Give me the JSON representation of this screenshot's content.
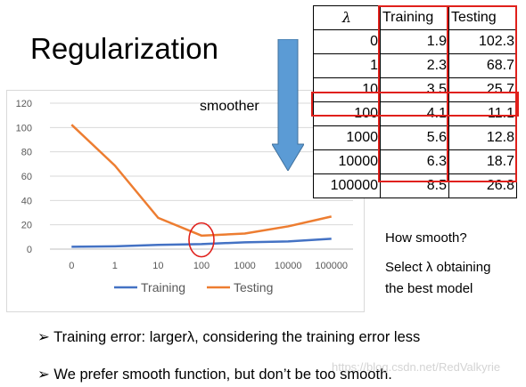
{
  "slide_title": "Regularization",
  "annotation_arrow_label": "smoother",
  "table": {
    "headers": [
      "λ",
      "Training",
      "Testing"
    ],
    "rows": [
      [
        "0",
        "1.9",
        "102.3"
      ],
      [
        "1",
        "2.3",
        "68.7"
      ],
      [
        "10",
        "3.5",
        "25.7"
      ],
      [
        "100",
        "4.1",
        "11.1"
      ],
      [
        "1000",
        "5.6",
        "12.8"
      ],
      [
        "10000",
        "6.3",
        "18.7"
      ],
      [
        "100000",
        "8.5",
        "26.8"
      ]
    ],
    "highlighted_row_lambda": "100"
  },
  "side_notes": {
    "question": "How smooth?",
    "answer_line1": "Select λ obtaining",
    "answer_line2": "the best model"
  },
  "bullets": [
    "Training error: largerλ, considering the training error less",
    "We prefer smooth function, but don’t be too smooth."
  ],
  "watermark": "https://blog.csdn.net/RedValkyrie",
  "colors": {
    "training": "#4472c4",
    "testing": "#ed7d31",
    "highlight": "#e0201b",
    "arrow": "#5b9bd5"
  },
  "chart_data": {
    "type": "line",
    "categories": [
      "0",
      "1",
      "10",
      "100",
      "1000",
      "10000",
      "100000"
    ],
    "series": [
      {
        "name": "Training",
        "values": [
          1.9,
          2.3,
          3.5,
          4.1,
          5.6,
          6.3,
          8.5
        ]
      },
      {
        "name": "Testing",
        "values": [
          102.3,
          68.7,
          25.7,
          11.1,
          12.8,
          18.7,
          26.8
        ]
      }
    ],
    "yticks": [
      "0",
      "20",
      "40",
      "60",
      "80",
      "100",
      "120"
    ],
    "ylim": [
      0,
      120
    ],
    "grid": true,
    "legend": "bottom",
    "highlighted_category": "100"
  }
}
